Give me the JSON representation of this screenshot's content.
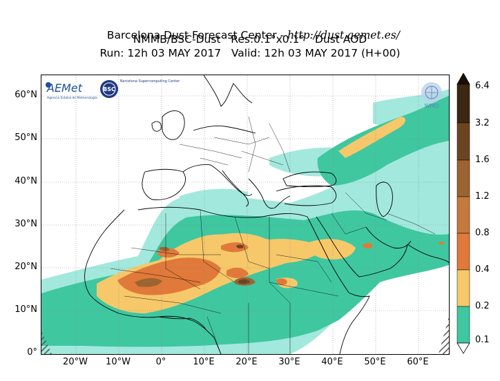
{
  "title": {
    "line1_prefix": "Barcelona Dust Forecast Center - ",
    "line1_url": "http://dust.aemet.es/",
    "line2": "NMMB/BSC-Dust   Res:0.1°x0.1°   Dust AOD",
    "line3": "Run: 12h 03 MAY 2017   Valid: 12h 03 MAY 2017 (H+00)"
  },
  "axes": {
    "lat_ticks": [
      "60°N",
      "50°N",
      "40°N",
      "30°N",
      "20°N",
      "10°N",
      "0°"
    ],
    "lon_ticks": [
      "20°W",
      "10°W",
      "0°",
      "10°E",
      "20°E",
      "30°E",
      "40°E",
      "50°E",
      "60°E"
    ]
  },
  "colorbar": {
    "labels": [
      "6.4",
      "3.2",
      "1.6",
      "1.2",
      "0.8",
      "0.4",
      "0.2",
      "0.1"
    ],
    "colors": [
      "#3b2712",
      "#6b4522",
      "#9c6430",
      "#c47a3c",
      "#e0793a",
      "#f6c86a",
      "#3fc7a0",
      "#a2e8dd"
    ]
  },
  "logos": {
    "aemet": "AEMet",
    "aemet_sub": "Agencia Estatal de Meteorología",
    "bsc": "BSC",
    "bsc_name": "Barcelona Supercomputing Center",
    "wmo": "WMO"
  },
  "colors": {
    "aod_0_1": "#a2e8dd",
    "aod_0_2": "#3fc7a0",
    "aod_0_4": "#f6c86a",
    "aod_0_8": "#e0793a",
    "aod_1_2": "#c47a3c",
    "aod_1_6": "#9c6430",
    "aod_3_2": "#6b4522"
  }
}
